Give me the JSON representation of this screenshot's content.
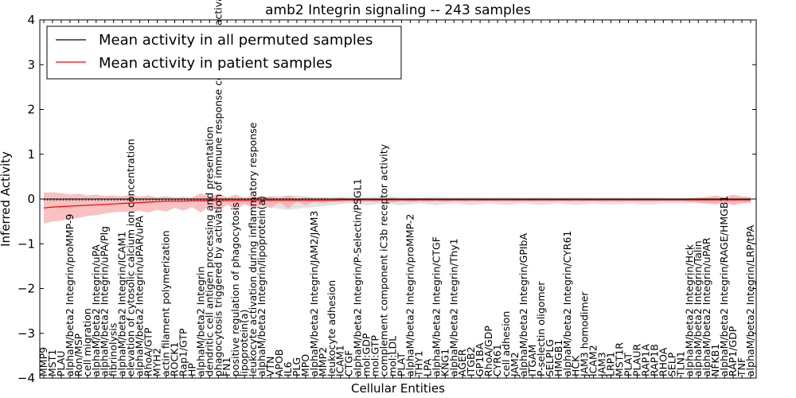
{
  "chart_data": {
    "type": "line",
    "title": "amb2 Integrin signaling -- 243 samples",
    "xlabel": "Cellular Entities",
    "ylabel": "Inferred Activity",
    "ylim": [
      -4,
      4
    ],
    "yticks": [
      -4,
      -3,
      -2,
      -1,
      0,
      1,
      2,
      3,
      4
    ],
    "grid": false,
    "legend_position": "top-left",
    "categories": [
      "MMP9",
      "MST1",
      "PLAU",
      "alphaM/beta2 Integrin/proMMP-9",
      "Ron/MSP",
      "cell migration",
      "alphaM/beta2 Integrin/uPA",
      "alphaM/beta2 Integrin/uPA/Plg",
      "fibrinolysis",
      "alphaM/beta2 Integrin/ICAM1",
      "elevation of cytosolic calcium ion concentration",
      "alphaM/beta2 Integrin/uPAR/uPA",
      "RhoA/GTP",
      "MYH2",
      "actin filament polymerization",
      "ROCK1",
      "Rap1/GTP",
      "HP",
      "alphaM/beta2 Integrin",
      "dendritic cell antigen processing and presentation",
      "phagocytosis triggered by activation of immune response cell surface activating receptor",
      "FN1",
      "positive regulation of phagocytosis",
      "lipoprotein(a)",
      "leukocyte activation during inflammatory response",
      "alphaM/beta2 Integrin/lipoprotein(a)",
      "VTN",
      "APOB",
      "IL6",
      "PLG",
      "MPO",
      "alphaM/beta2 Integrin/JAM2/JAM3",
      "MMP2",
      "leukocyte adhesion",
      "ICAM1",
      "CTGF",
      "alphaM/beta2 Integrin/P-Selectin/PSGL1",
      "mol:GDP",
      "mol:GTP",
      "complement component iC3b receptor activity",
      "mol:LDL",
      "PLAT",
      "alphaM/beta2 Integrin/proMMP-2",
      "THY1",
      "LPA",
      "alphaM/beta2 Integrin/CTGF",
      "KNG1",
      "alphaM/beta2 Integrin/Thy1",
      "AGER",
      "ITGB2",
      "GP1BA",
      "RhoA/GDP",
      "CYR61",
      "cell adhesion",
      "JAM2",
      "alphaM/beta2 Integrin/GPIbA",
      "ITGAM",
      "P-selectin oligomer",
      "SELPLG",
      "HMGB1",
      "alphaM/beta2 Integrin/CYR61",
      "HCK",
      "JAM3 homodimer",
      "ICAM2",
      "JAM3",
      "LRP1",
      "MST1R",
      "PLAT",
      "PLAUR",
      "RAP1A",
      "RAP1B",
      "RHOA",
      "SELP",
      "TLN1",
      "alphaM/beta2 Integrin/Hck",
      "alphaM/beta2 Integrin/Talin",
      "alphaM/beta2 Integrin/uPAR",
      "NFKB1",
      "alphaM/beta2 Integrin/RAGE/HMGB1",
      "RAP1/GDP",
      "TNF",
      "alphaM/beta2 Integrin/LRP/tPA"
    ],
    "series": [
      {
        "name": "Mean activity in all permuted samples",
        "color": "#000000",
        "values": [
          -0.02,
          -0.02,
          -0.02,
          -0.02,
          -0.02,
          -0.02,
          -0.02,
          -0.02,
          -0.02,
          -0.02,
          -0.02,
          -0.02,
          -0.02,
          -0.02,
          -0.02,
          -0.02,
          -0.02,
          -0.02,
          -0.02,
          -0.02,
          -0.02,
          -0.02,
          -0.02,
          -0.02,
          -0.02,
          -0.02,
          -0.02,
          -0.02,
          -0.02,
          -0.02,
          -0.02,
          -0.02,
          -0.02,
          -0.02,
          -0.02,
          -0.02,
          -0.02,
          -0.02,
          -0.02,
          -0.02,
          -0.02,
          -0.02,
          -0.02,
          -0.02,
          -0.02,
          -0.02,
          -0.02,
          -0.02,
          -0.02,
          -0.02,
          -0.02,
          -0.02,
          -0.02,
          -0.02,
          -0.02,
          -0.02,
          -0.02,
          -0.02,
          -0.02,
          -0.02,
          -0.02,
          -0.02,
          -0.02,
          -0.02,
          -0.02,
          -0.02,
          -0.02,
          -0.02,
          -0.02,
          -0.02,
          -0.02,
          -0.02,
          -0.02,
          -0.02,
          -0.02,
          -0.02,
          -0.02,
          -0.02,
          -0.02,
          -0.02,
          -0.02,
          -0.02
        ],
        "band_upper": [
          0.02,
          0.02,
          0.02,
          0.02,
          0.02,
          0.02,
          0.02,
          0.02,
          0.02,
          0.02,
          0.02,
          0.02,
          0.02,
          0.02,
          0.02,
          0.02,
          0.02,
          0.02,
          0.02,
          0.03,
          0.03,
          0.03,
          0.03,
          0.03,
          0.04,
          0.05,
          0.06,
          0.07,
          0.08,
          0.08,
          0.06,
          0.05,
          0.04,
          0.04,
          0.05,
          0.04,
          0.03,
          0.04,
          0.05,
          0.05,
          0.05,
          0.04,
          0.04,
          0.03,
          0.04,
          0.05,
          0.04,
          0.03,
          0.04,
          0.05,
          0.04,
          0.03,
          0.04,
          0.05,
          0.04,
          0.03,
          0.04,
          0.05,
          0.04,
          0.03,
          0.04,
          0.05,
          0.04,
          0.03,
          0.04,
          0.04,
          0.04,
          0.03,
          0.04,
          0.04,
          0.04,
          0.03,
          0.03,
          0.03,
          0.03,
          0.03,
          0.03,
          0.03,
          0.03,
          0.03,
          0.03,
          0.03
        ],
        "band_lower": [
          -0.06,
          -0.06,
          -0.06,
          -0.06,
          -0.06,
          -0.06,
          -0.06,
          -0.06,
          -0.06,
          -0.06,
          -0.06,
          -0.06,
          -0.06,
          -0.06,
          -0.06,
          -0.06,
          -0.06,
          -0.06,
          -0.06,
          -0.07,
          -0.08,
          -0.08,
          -0.1,
          -0.12,
          -0.15,
          -0.18,
          -0.2,
          -0.22,
          -0.24,
          -0.22,
          -0.2,
          -0.18,
          -0.16,
          -0.14,
          -0.12,
          -0.1,
          -0.12,
          -0.14,
          -0.12,
          -0.1,
          -0.12,
          -0.14,
          -0.12,
          -0.1,
          -0.12,
          -0.14,
          -0.12,
          -0.1,
          -0.12,
          -0.14,
          -0.12,
          -0.1,
          -0.12,
          -0.14,
          -0.12,
          -0.1,
          -0.12,
          -0.14,
          -0.12,
          -0.1,
          -0.12,
          -0.14,
          -0.12,
          -0.1,
          -0.12,
          -0.12,
          -0.12,
          -0.1,
          -0.12,
          -0.12,
          -0.12,
          -0.1,
          -0.1,
          -0.1,
          -0.1,
          -0.1,
          -0.1,
          -0.1,
          -0.08,
          -0.08,
          -0.08,
          -0.08
        ],
        "band_color": "#d9d9d9"
      },
      {
        "name": "Mean activity in patient samples",
        "color": "#ff0000",
        "values": [
          -0.2,
          -0.18,
          -0.17,
          -0.16,
          -0.15,
          -0.14,
          -0.13,
          -0.12,
          -0.11,
          -0.1,
          -0.09,
          -0.08,
          -0.07,
          -0.06,
          -0.05,
          -0.05,
          -0.05,
          -0.04,
          -0.04,
          -0.04,
          -0.04,
          -0.03,
          -0.03,
          -0.03,
          -0.03,
          -0.03,
          -0.03,
          -0.03,
          -0.03,
          -0.03,
          -0.03,
          -0.03,
          -0.03,
          -0.03,
          -0.02,
          -0.02,
          -0.02,
          -0.02,
          -0.02,
          -0.02,
          -0.02,
          -0.02,
          -0.02,
          -0.02,
          -0.02,
          -0.02,
          -0.02,
          -0.02,
          -0.02,
          -0.02,
          -0.02,
          -0.02,
          -0.02,
          -0.02,
          -0.02,
          -0.02,
          -0.02,
          -0.02,
          -0.02,
          -0.02,
          -0.02,
          -0.02,
          -0.02,
          -0.02,
          -0.02,
          -0.02,
          -0.02,
          -0.02,
          -0.02,
          -0.02,
          -0.02,
          -0.02,
          -0.02,
          -0.02,
          -0.02,
          -0.02,
          -0.02,
          -0.02,
          -0.02,
          -0.02,
          -0.02,
          -0.02
        ],
        "band_upper": [
          0.15,
          0.15,
          0.13,
          0.1,
          0.12,
          0.08,
          0.1,
          0.07,
          0.08,
          0.06,
          0.1,
          0.05,
          0.08,
          0.04,
          0.06,
          0.03,
          0.05,
          0.03,
          0.13,
          0.05,
          0.12,
          0.03,
          0.1,
          0.02,
          0.08,
          0.02,
          0.06,
          0.02,
          0.08,
          0.01,
          0.04,
          0.01,
          0.03,
          0.01,
          0.03,
          0.01,
          0.02,
          0.01,
          0.02,
          0.01,
          0.03,
          0.0,
          0.02,
          0.01,
          0.02,
          0.0,
          0.02,
          0.0,
          0.01,
          0.0,
          0.01,
          0.0,
          0.01,
          0.0,
          0.01,
          0.0,
          0.01,
          0.0,
          0.01,
          0.0,
          0.01,
          0.0,
          0.01,
          0.0,
          0.01,
          0.0,
          0.01,
          0.0,
          0.01,
          0.0,
          0.01,
          0.0,
          0.01,
          0.0,
          0.02,
          0.03,
          0.05,
          0.08,
          0.04,
          0.1,
          0.06,
          0.05
        ],
        "band_lower": [
          -0.55,
          -0.5,
          -0.48,
          -0.45,
          -0.42,
          -0.38,
          -0.36,
          -0.32,
          -0.3,
          -0.28,
          -0.3,
          -0.26,
          -0.3,
          -0.24,
          -0.28,
          -0.2,
          -0.26,
          -0.18,
          -0.3,
          -0.16,
          -0.28,
          -0.12,
          -0.26,
          -0.1,
          -0.22,
          -0.1,
          -0.2,
          -0.08,
          -0.22,
          -0.06,
          -0.14,
          -0.06,
          -0.1,
          -0.05,
          -0.08,
          -0.05,
          -0.06,
          -0.05,
          -0.07,
          -0.04,
          -0.08,
          -0.04,
          -0.07,
          -0.04,
          -0.06,
          -0.04,
          -0.06,
          -0.04,
          -0.05,
          -0.04,
          -0.05,
          -0.04,
          -0.05,
          -0.04,
          -0.05,
          -0.04,
          -0.05,
          -0.04,
          -0.05,
          -0.04,
          -0.05,
          -0.04,
          -0.05,
          -0.04,
          -0.05,
          -0.04,
          -0.05,
          -0.04,
          -0.05,
          -0.04,
          -0.05,
          -0.04,
          -0.05,
          -0.04,
          -0.06,
          -0.08,
          -0.1,
          -0.12,
          -0.08,
          -0.14,
          -0.1,
          -0.08
        ],
        "band_color": "#f6a7a7"
      }
    ],
    "legend": [
      {
        "label": "Mean activity in all permuted samples",
        "color": "#000000"
      },
      {
        "label": "Mean activity in patient samples",
        "color": "#ff0000"
      }
    ]
  }
}
